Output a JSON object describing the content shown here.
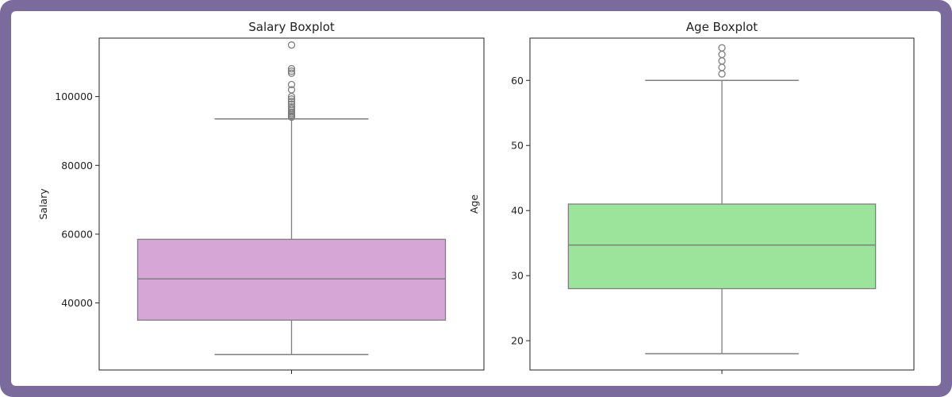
{
  "colors": {
    "frame": "#7b6b9d",
    "salary_box": "#d6a7d6",
    "age_box": "#9ce49c",
    "whisker": "#7f7f7f",
    "axis": "#222222"
  },
  "chart_data": [
    {
      "type": "boxplot",
      "title": "Salary Boxplot",
      "xlabel": "",
      "ylabel": "Salary",
      "ylim": [
        20500,
        117000
      ],
      "yticks": [
        40000,
        60000,
        80000,
        100000
      ],
      "ytick_labels": [
        "40000",
        "60000",
        "80000",
        "100000"
      ],
      "box": {
        "whisker_low": 25000,
        "q1": 35000,
        "median": 47000,
        "q3": 58500,
        "whisker_high": 93500
      },
      "outliers": [
        94000,
        94300,
        94700,
        95100,
        95500,
        96000,
        96500,
        97000,
        97800,
        98600,
        99300,
        100000,
        102000,
        103500,
        106800,
        107400,
        108100,
        115000
      ],
      "color": "#d6a7d6"
    },
    {
      "type": "boxplot",
      "title": "Age Boxplot",
      "xlabel": "",
      "ylabel": "Age",
      "ylim": [
        15.5,
        66.5
      ],
      "yticks": [
        20,
        30,
        40,
        50,
        60
      ],
      "ytick_labels": [
        "20",
        "30",
        "40",
        "50",
        "60"
      ],
      "box": {
        "whisker_low": 18,
        "q1": 28,
        "median": 34.7,
        "q3": 41,
        "whisker_high": 60
      },
      "outliers": [
        61,
        62,
        63,
        64,
        65
      ],
      "color": "#9ce49c"
    }
  ]
}
